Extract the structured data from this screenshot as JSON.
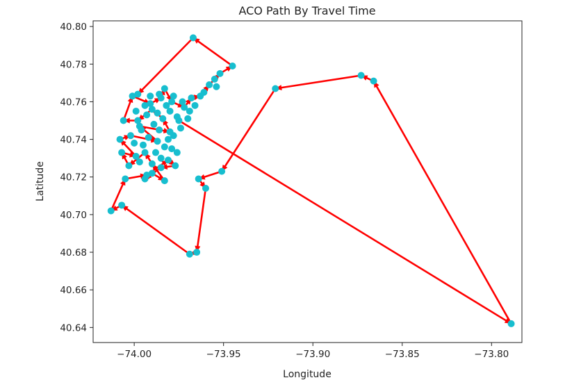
{
  "chart_data": {
    "type": "line",
    "title": "ACO Path By Travel Time",
    "xlabel": "Longitude",
    "ylabel": "Latitude",
    "xlim": [
      -74.023,
      -73.783
    ],
    "ylim": [
      40.632,
      40.803
    ],
    "xticks": [
      {
        "value": -74.0,
        "label": "−74.00"
      },
      {
        "value": -73.95,
        "label": "−73.95"
      },
      {
        "value": -73.9,
        "label": "−73.90"
      },
      {
        "value": -73.85,
        "label": "−73.85"
      },
      {
        "value": -73.8,
        "label": "−73.80"
      }
    ],
    "yticks": [
      {
        "value": 40.64,
        "label": "40.64"
      },
      {
        "value": 40.66,
        "label": "40.66"
      },
      {
        "value": 40.68,
        "label": "40.68"
      },
      {
        "value": 40.7,
        "label": "40.70"
      },
      {
        "value": 40.72,
        "label": "40.72"
      },
      {
        "value": 40.74,
        "label": "40.74"
      },
      {
        "value": 40.76,
        "label": "40.76"
      },
      {
        "value": 40.78,
        "label": "40.78"
      },
      {
        "value": 40.8,
        "label": "40.80"
      }
    ],
    "grid": false,
    "path_color": "#ff0000",
    "point_color": "#17becf",
    "path": [
      [
        -73.975,
        40.75
      ],
      [
        -73.789,
        40.642
      ],
      [
        -73.866,
        40.771
      ],
      [
        -73.873,
        40.774
      ],
      [
        -73.921,
        40.767
      ],
      [
        -73.951,
        40.723
      ],
      [
        -73.964,
        40.719
      ],
      [
        -73.96,
        40.714
      ],
      [
        -73.965,
        40.68
      ],
      [
        -73.969,
        40.679
      ],
      [
        -74.007,
        40.705
      ],
      [
        -74.013,
        40.702
      ],
      [
        -74.005,
        40.719
      ],
      [
        -73.993,
        40.721
      ],
      [
        -73.981,
        40.729
      ],
      [
        -73.977,
        40.726
      ],
      [
        -73.985,
        40.725
      ],
      [
        -73.994,
        40.719
      ],
      [
        -73.99,
        40.722
      ],
      [
        -73.983,
        40.718
      ],
      [
        -73.99,
        40.727
      ],
      [
        -73.994,
        40.733
      ],
      [
        -74.003,
        40.726
      ],
      [
        -74.007,
        40.733
      ],
      [
        -73.999,
        40.731
      ],
      [
        -74.008,
        40.74
      ],
      [
        -74.002,
        40.742
      ],
      [
        -73.987,
        40.739
      ],
      [
        -73.997,
        40.747
      ],
      [
        -73.98,
        40.744
      ],
      [
        -73.984,
        40.751
      ],
      [
        -73.99,
        40.756
      ],
      [
        -73.998,
        40.75
      ],
      [
        -74.006,
        40.75
      ],
      [
        -74.001,
        40.763
      ],
      [
        -73.991,
        40.759
      ],
      [
        -73.985,
        40.762
      ],
      [
        -73.983,
        40.767
      ],
      [
        -73.979,
        40.76
      ],
      [
        -73.972,
        40.757
      ],
      [
        -73.968,
        40.762
      ],
      [
        -73.963,
        40.763
      ],
      [
        -73.958,
        40.769
      ],
      [
        -73.952,
        40.775
      ],
      [
        -73.945,
        40.779
      ],
      [
        -73.967,
        40.794
      ],
      [
        -73.998,
        40.764
      ]
    ],
    "extra_points": [
      [
        -73.98,
        40.755
      ],
      [
        -73.976,
        40.752
      ],
      [
        -73.986,
        40.745
      ],
      [
        -73.992,
        40.741
      ],
      [
        -73.995,
        40.737
      ],
      [
        -73.988,
        40.733
      ],
      [
        -73.983,
        40.736
      ],
      [
        -73.978,
        40.742
      ],
      [
        -73.974,
        40.746
      ],
      [
        -73.97,
        40.751
      ],
      [
        -73.966,
        40.758
      ],
      [
        -73.961,
        40.765
      ],
      [
        -73.955,
        40.772
      ],
      [
        -73.954,
        40.768
      ],
      [
        -73.989,
        40.748
      ],
      [
        -73.993,
        40.753
      ],
      [
        -73.996,
        40.745
      ],
      [
        -74.0,
        40.738
      ],
      [
        -73.997,
        40.728
      ],
      [
        -73.985,
        40.73
      ],
      [
        -73.979,
        40.735
      ],
      [
        -73.981,
        40.74
      ],
      [
        -73.987,
        40.754
      ],
      [
        -73.982,
        40.758
      ],
      [
        -73.978,
        40.763
      ],
      [
        -73.986,
        40.764
      ],
      [
        -73.991,
        40.763
      ],
      [
        -73.994,
        40.758
      ],
      [
        -73.999,
        40.755
      ],
      [
        -73.973,
        40.76
      ],
      [
        -73.969,
        40.755
      ],
      [
        -73.976,
        40.733
      ]
    ]
  }
}
